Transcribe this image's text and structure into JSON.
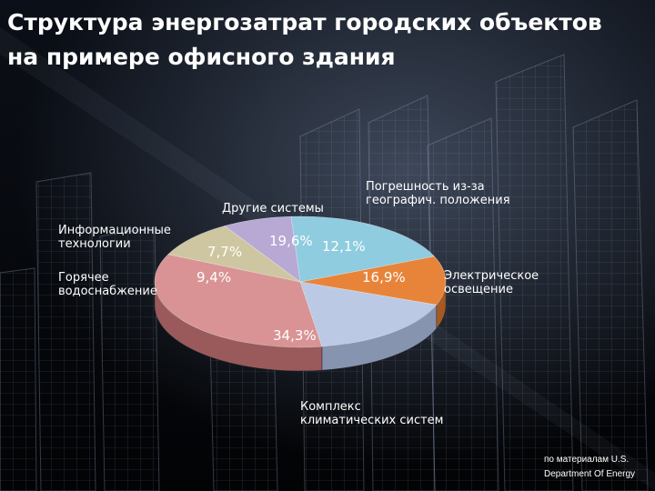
{
  "title": {
    "line1": "Структура энергозатрат городских объектов",
    "line2": "на примере офисного здания"
  },
  "source": {
    "line1": "по материалам U.S.",
    "line2": "Department Of Energy"
  },
  "colors": {
    "background": "#05070c",
    "title": "#ffffff"
  },
  "chart_data": {
    "type": "pie",
    "style": "3d",
    "title": "",
    "start_category": "Погрешность из-за географич. положения",
    "direction": "clockwise",
    "slices": [
      {
        "label_lines": [
          "Погрешность из-за",
          "географич. положения"
        ],
        "value": 12.1,
        "value_label": "12,1%",
        "color": "#e8843a",
        "side_color": "#a65a22"
      },
      {
        "label_lines": [
          "Электрическое",
          "освещение"
        ],
        "value": 16.9,
        "value_label": "16,9%",
        "color": "#bcc9e4",
        "side_color": "#8794b0"
      },
      {
        "label_lines": [
          "Комплекс",
          "климатических систем"
        ],
        "value": 34.3,
        "value_label": "34,3%",
        "color": "#d99394",
        "side_color": "#9a5a5c"
      },
      {
        "label_lines": [
          "Горячее",
          "водоснабжение"
        ],
        "value": 9.4,
        "value_label": "9,4%",
        "color": "#cdc6a0",
        "side_color": "#928c6c"
      },
      {
        "label_lines": [
          "Информационные",
          "технологии"
        ],
        "value": 7.7,
        "value_label": "7,7%",
        "color": "#b7a8d4",
        "side_color": "#7f7199"
      },
      {
        "label_lines": [
          "Другие системы"
        ],
        "value": 19.6,
        "value_label": "19,6%",
        "color": "#8fcce0",
        "side_color": "#5a93a6"
      }
    ]
  }
}
